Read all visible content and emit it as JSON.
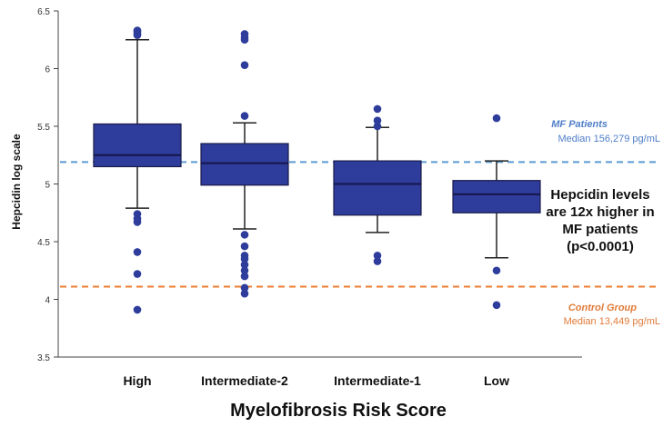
{
  "chart_data": {
    "type": "box",
    "xlabel": "Myelofibrosis Risk Score",
    "ylabel": "Hepcidin log scale",
    "ylim": [
      3.5,
      6.5
    ],
    "y_ticks": [
      "3.5",
      "4",
      "4.5",
      "5",
      "5.5",
      "6",
      "6.5"
    ],
    "categories": [
      "High",
      "Intermediate-2",
      "Intermediate-1",
      "Low"
    ],
    "box_color": "#2E3D9B",
    "boxes": [
      {
        "category": "High",
        "whisker_low": 4.79,
        "q1": 5.15,
        "median": 5.25,
        "q3": 5.52,
        "whisker_high": 6.25,
        "outliers": [
          6.33,
          6.32,
          6.3,
          6.29,
          4.74,
          4.7,
          4.67,
          4.41,
          4.22,
          3.91
        ]
      },
      {
        "category": "Intermediate-2",
        "whisker_low": 4.61,
        "q1": 4.99,
        "median": 5.18,
        "q3": 5.35,
        "whisker_high": 5.53,
        "outliers": [
          6.3,
          6.27,
          6.25,
          6.03,
          5.59,
          4.56,
          4.46,
          4.38,
          4.35,
          4.3,
          4.25,
          4.2,
          4.1,
          4.05
        ]
      },
      {
        "category": "Intermediate-1",
        "whisker_low": 4.58,
        "q1": 4.73,
        "median": 5.0,
        "q3": 5.2,
        "whisker_high": 5.49,
        "outliers": [
          5.65,
          5.55,
          5.5,
          4.38,
          4.33
        ]
      },
      {
        "category": "Low",
        "whisker_low": 4.36,
        "q1": 4.75,
        "median": 4.91,
        "q3": 5.03,
        "whisker_high": 5.2,
        "outliers": [
          5.57,
          4.25,
          3.95
        ]
      }
    ],
    "reference_lines": [
      {
        "y": 5.19,
        "color": "#5B9BD5",
        "title": "MF Patients",
        "subtitle": "Median 156,279 pg/mL"
      },
      {
        "y": 4.11,
        "color": "#ED7D31",
        "title": "Control Group",
        "subtitle": "Median 13,449 pg/mL"
      }
    ],
    "annotation": [
      "Hepcidin levels",
      "are 12x higher in",
      "MF patients",
      "(p<0.0001)"
    ]
  }
}
